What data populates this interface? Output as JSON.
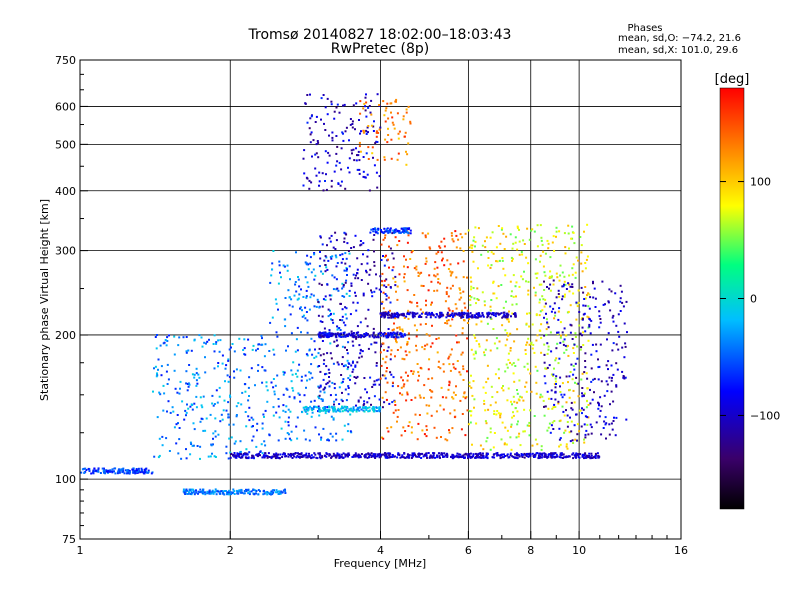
{
  "chart_data": {
    "type": "scatter",
    "title": "Tromsø 20140827 18:02:00–18:03:43",
    "subtitle": "RwPretec (8p)",
    "xlabel": "Frequency [MHz]",
    "ylabel": "Stationary phase Virtual Height [km]",
    "x_scale": "log",
    "y_scale": "log",
    "xlim": [
      1,
      16
    ],
    "ylim": [
      75,
      750
    ],
    "x_ticks": [
      1,
      2,
      4,
      6,
      8,
      10,
      16
    ],
    "y_ticks": [
      75,
      100,
      200,
      300,
      400,
      500,
      600,
      750
    ],
    "x_tick_labels": [
      "1",
      "2",
      "4",
      "6",
      "8",
      "10",
      "16"
    ],
    "y_tick_labels": [
      "75",
      "100",
      "200",
      "300",
      "400",
      "500",
      "600",
      "750"
    ],
    "grid": true,
    "colorbar": {
      "label": "[deg]",
      "range": [
        -180,
        180
      ],
      "ticks": [
        100,
        0,
        -100
      ],
      "tick_labels": [
        "100",
        "0",
        "−100"
      ],
      "colors": [
        "#000000",
        "#3a006a",
        "#0000ff",
        "#00bfff",
        "#00ff80",
        "#ffff00",
        "#ff8000",
        "#ff0000"
      ]
    },
    "stats": {
      "heading": "Phases",
      "line1": "mean, sd,O: −74.2, 21.6",
      "line2": "mean, sd,X: 101.0, 29.6"
    },
    "traces": [
      {
        "kind": "band",
        "f_start": 2.0,
        "f_end": 11.0,
        "h": 112,
        "phase": -100
      },
      {
        "kind": "band",
        "f_start": 2.8,
        "f_end": 4.0,
        "h": 140,
        "phase": -20
      },
      {
        "kind": "band",
        "f_start": 4.0,
        "f_end": 7.5,
        "h": 220,
        "phase": -100
      },
      {
        "kind": "band",
        "f_start": 3.0,
        "f_end": 4.5,
        "h": 200,
        "phase": -90
      },
      {
        "kind": "band",
        "f_start": 3.8,
        "f_end": 4.6,
        "h": 330,
        "phase": -60
      },
      {
        "kind": "band",
        "f_start": 1.6,
        "f_end": 2.6,
        "h": 94,
        "phase": -40
      },
      {
        "kind": "band",
        "f_start": 1.0,
        "f_end": 1.4,
        "h": 104,
        "phase": -60
      }
    ],
    "clusters": [
      {
        "f_min": 2.8,
        "f_max": 4.0,
        "h_min": 400,
        "h_max": 640,
        "phase": -100
      },
      {
        "f_min": 3.6,
        "f_max": 4.6,
        "h_min": 450,
        "h_max": 620,
        "phase": 130
      },
      {
        "f_min": 1.4,
        "f_max": 2.4,
        "h_min": 110,
        "h_max": 200,
        "phase": -40
      },
      {
        "f_min": 2.4,
        "f_max": 3.5,
        "h_min": 120,
        "h_max": 300,
        "phase": -40
      },
      {
        "f_min": 3.0,
        "f_max": 4.3,
        "h_min": 140,
        "h_max": 330,
        "phase": -100
      },
      {
        "f_min": 4.0,
        "f_max": 6.0,
        "h_min": 120,
        "h_max": 330,
        "phase": 140
      },
      {
        "f_min": 6.0,
        "f_max": 10.5,
        "h_min": 115,
        "h_max": 340,
        "phase": 80
      },
      {
        "f_min": 8.5,
        "f_max": 12.5,
        "h_min": 120,
        "h_max": 260,
        "phase": -100
      }
    ]
  }
}
